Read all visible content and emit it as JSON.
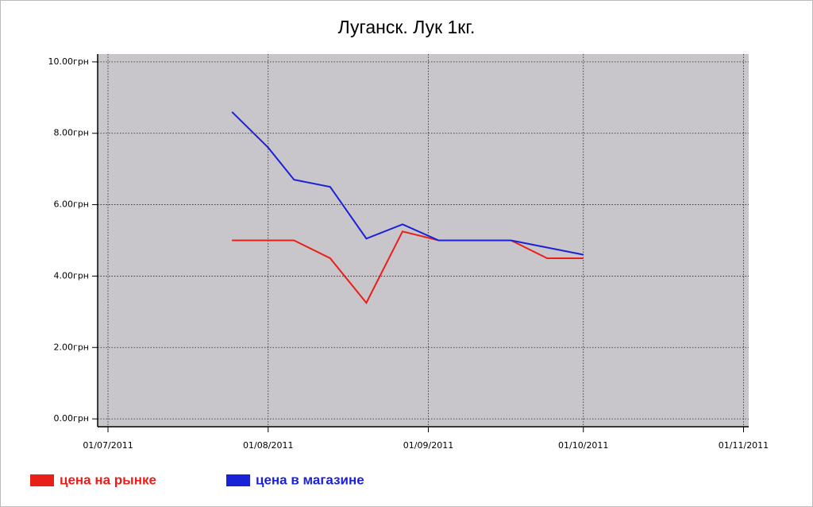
{
  "chart_data": {
    "type": "line",
    "title": "Луганск. Лук 1кг.",
    "x": [
      "2011-07-25",
      "2011-08-01",
      "2011-08-06",
      "2011-08-13",
      "2011-08-20",
      "2011-08-27",
      "2011-09-03",
      "2011-09-10",
      "2011-09-17",
      "2011-09-24",
      "2011-10-01"
    ],
    "series": [
      {
        "name": "цена на рынке",
        "color": "#e8201a",
        "values": [
          5,
          5,
          5,
          4.5,
          3.25,
          5.25,
          5,
          5,
          5,
          4.5,
          4.5
        ]
      },
      {
        "name": "цена в магазине",
        "color": "#1a22d8",
        "values": [
          8.6,
          7.6,
          6.7,
          6.5,
          5.05,
          5.45,
          5,
          5,
          5,
          4.8,
          4.6
        ]
      }
    ],
    "xlim": [
      "2011-06-29",
      "2011-11-02"
    ],
    "xticks": [
      {
        "value": "2011-07-01",
        "label": "01/07/2011"
      },
      {
        "value": "2011-08-01",
        "label": "01/08/2011"
      },
      {
        "value": "2011-09-01",
        "label": "01/09/2011"
      },
      {
        "value": "2011-10-01",
        "label": "01/10/2011"
      },
      {
        "value": "2011-11-01",
        "label": "01/11/2011"
      }
    ],
    "ylim": [
      -0.22,
      10.22
    ],
    "yticks": [
      {
        "value": 0,
        "label": "0.00грн"
      },
      {
        "value": 2,
        "label": "2.00грн"
      },
      {
        "value": 4,
        "label": "4.00грн"
      },
      {
        "value": 6,
        "label": "6.00грн"
      },
      {
        "value": 8,
        "label": "8.00грн"
      },
      {
        "value": 10,
        "label": "10.00грн"
      }
    ],
    "grid": true
  }
}
